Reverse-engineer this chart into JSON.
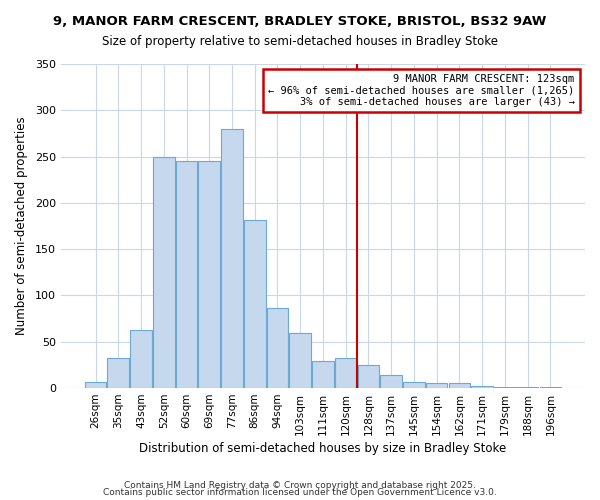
{
  "title1": "9, MANOR FARM CRESCENT, BRADLEY STOKE, BRISTOL, BS32 9AW",
  "title2": "Size of property relative to semi-detached houses in Bradley Stoke",
  "xlabel": "Distribution of semi-detached houses by size in Bradley Stoke",
  "ylabel": "Number of semi-detached properties",
  "categories": [
    "26sqm",
    "35sqm",
    "43sqm",
    "52sqm",
    "60sqm",
    "69sqm",
    "77sqm",
    "86sqm",
    "94sqm",
    "103sqm",
    "111sqm",
    "120sqm",
    "128sqm",
    "137sqm",
    "145sqm",
    "154sqm",
    "162sqm",
    "171sqm",
    "179sqm",
    "188sqm",
    "196sqm"
  ],
  "values": [
    7,
    33,
    63,
    250,
    245,
    245,
    280,
    182,
    86,
    59,
    29,
    33,
    25,
    14,
    7,
    5,
    5,
    2,
    1,
    1,
    1
  ],
  "bar_color": "#c5d8ee",
  "bar_edge_color": "#6aaad4",
  "vline_x_index": 12,
  "annotation_title": "9 MANOR FARM CRESCENT: 123sqm",
  "annotation_line1": "← 96% of semi-detached houses are smaller (1,265)",
  "annotation_line2": "3% of semi-detached houses are larger (43) →",
  "annotation_box_color": "#ffffff",
  "annotation_box_edge": "#cc0000",
  "vline_color": "#cc0000",
  "ylim": [
    0,
    350
  ],
  "yticks": [
    0,
    50,
    100,
    150,
    200,
    250,
    300,
    350
  ],
  "bg_color": "#ffffff",
  "plot_bg_color": "#ffffff",
  "grid_color": "#c8d8e8",
  "footer1": "Contains HM Land Registry data © Crown copyright and database right 2025.",
  "footer2": "Contains public sector information licensed under the Open Government Licence v3.0."
}
